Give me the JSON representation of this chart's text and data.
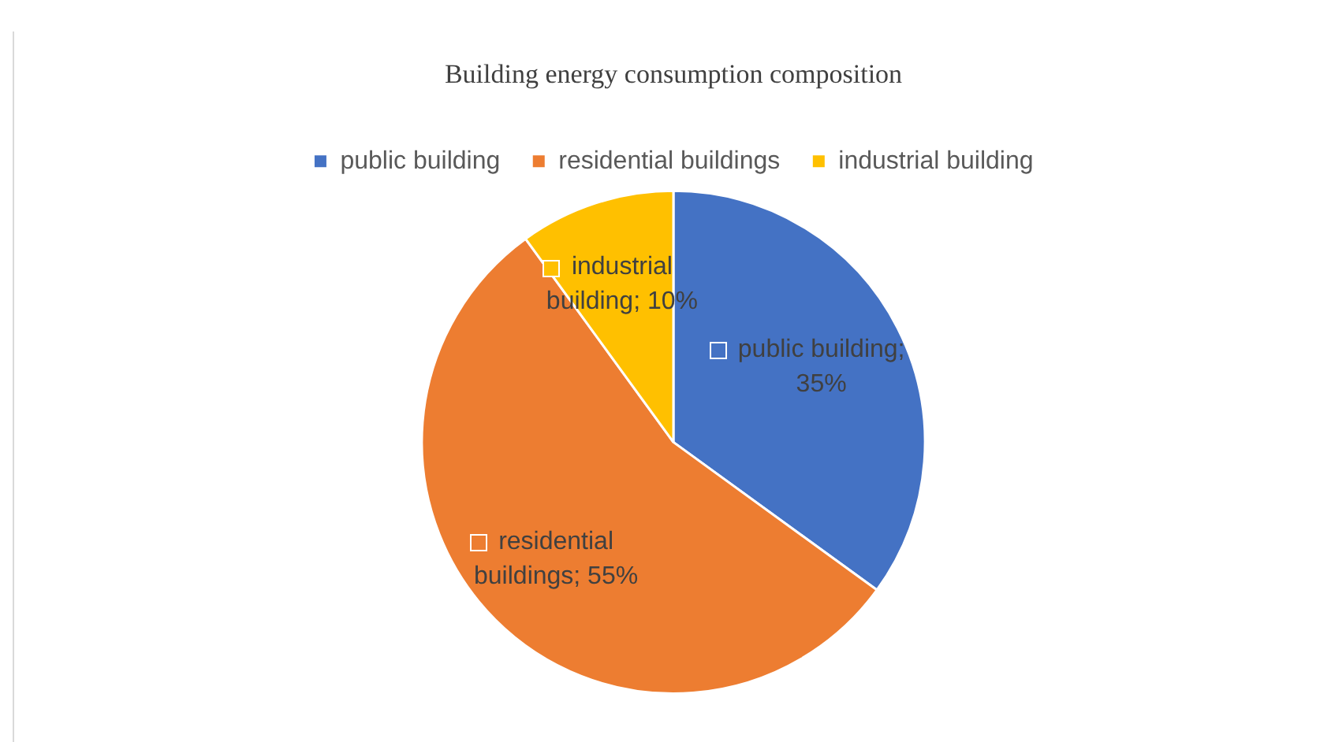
{
  "chart_data": {
    "type": "pie",
    "title": "Building energy consumption composition",
    "categories": [
      "public building",
      "residential buildings",
      "industrial building"
    ],
    "values": [
      35,
      55,
      10
    ],
    "colors": [
      "#4472c4",
      "#ed7d31",
      "#ffc000"
    ],
    "value_labels": [
      "public building; 35%",
      "residential buildings; 55%",
      "industrial building; 10%"
    ],
    "legend": "top"
  }
}
